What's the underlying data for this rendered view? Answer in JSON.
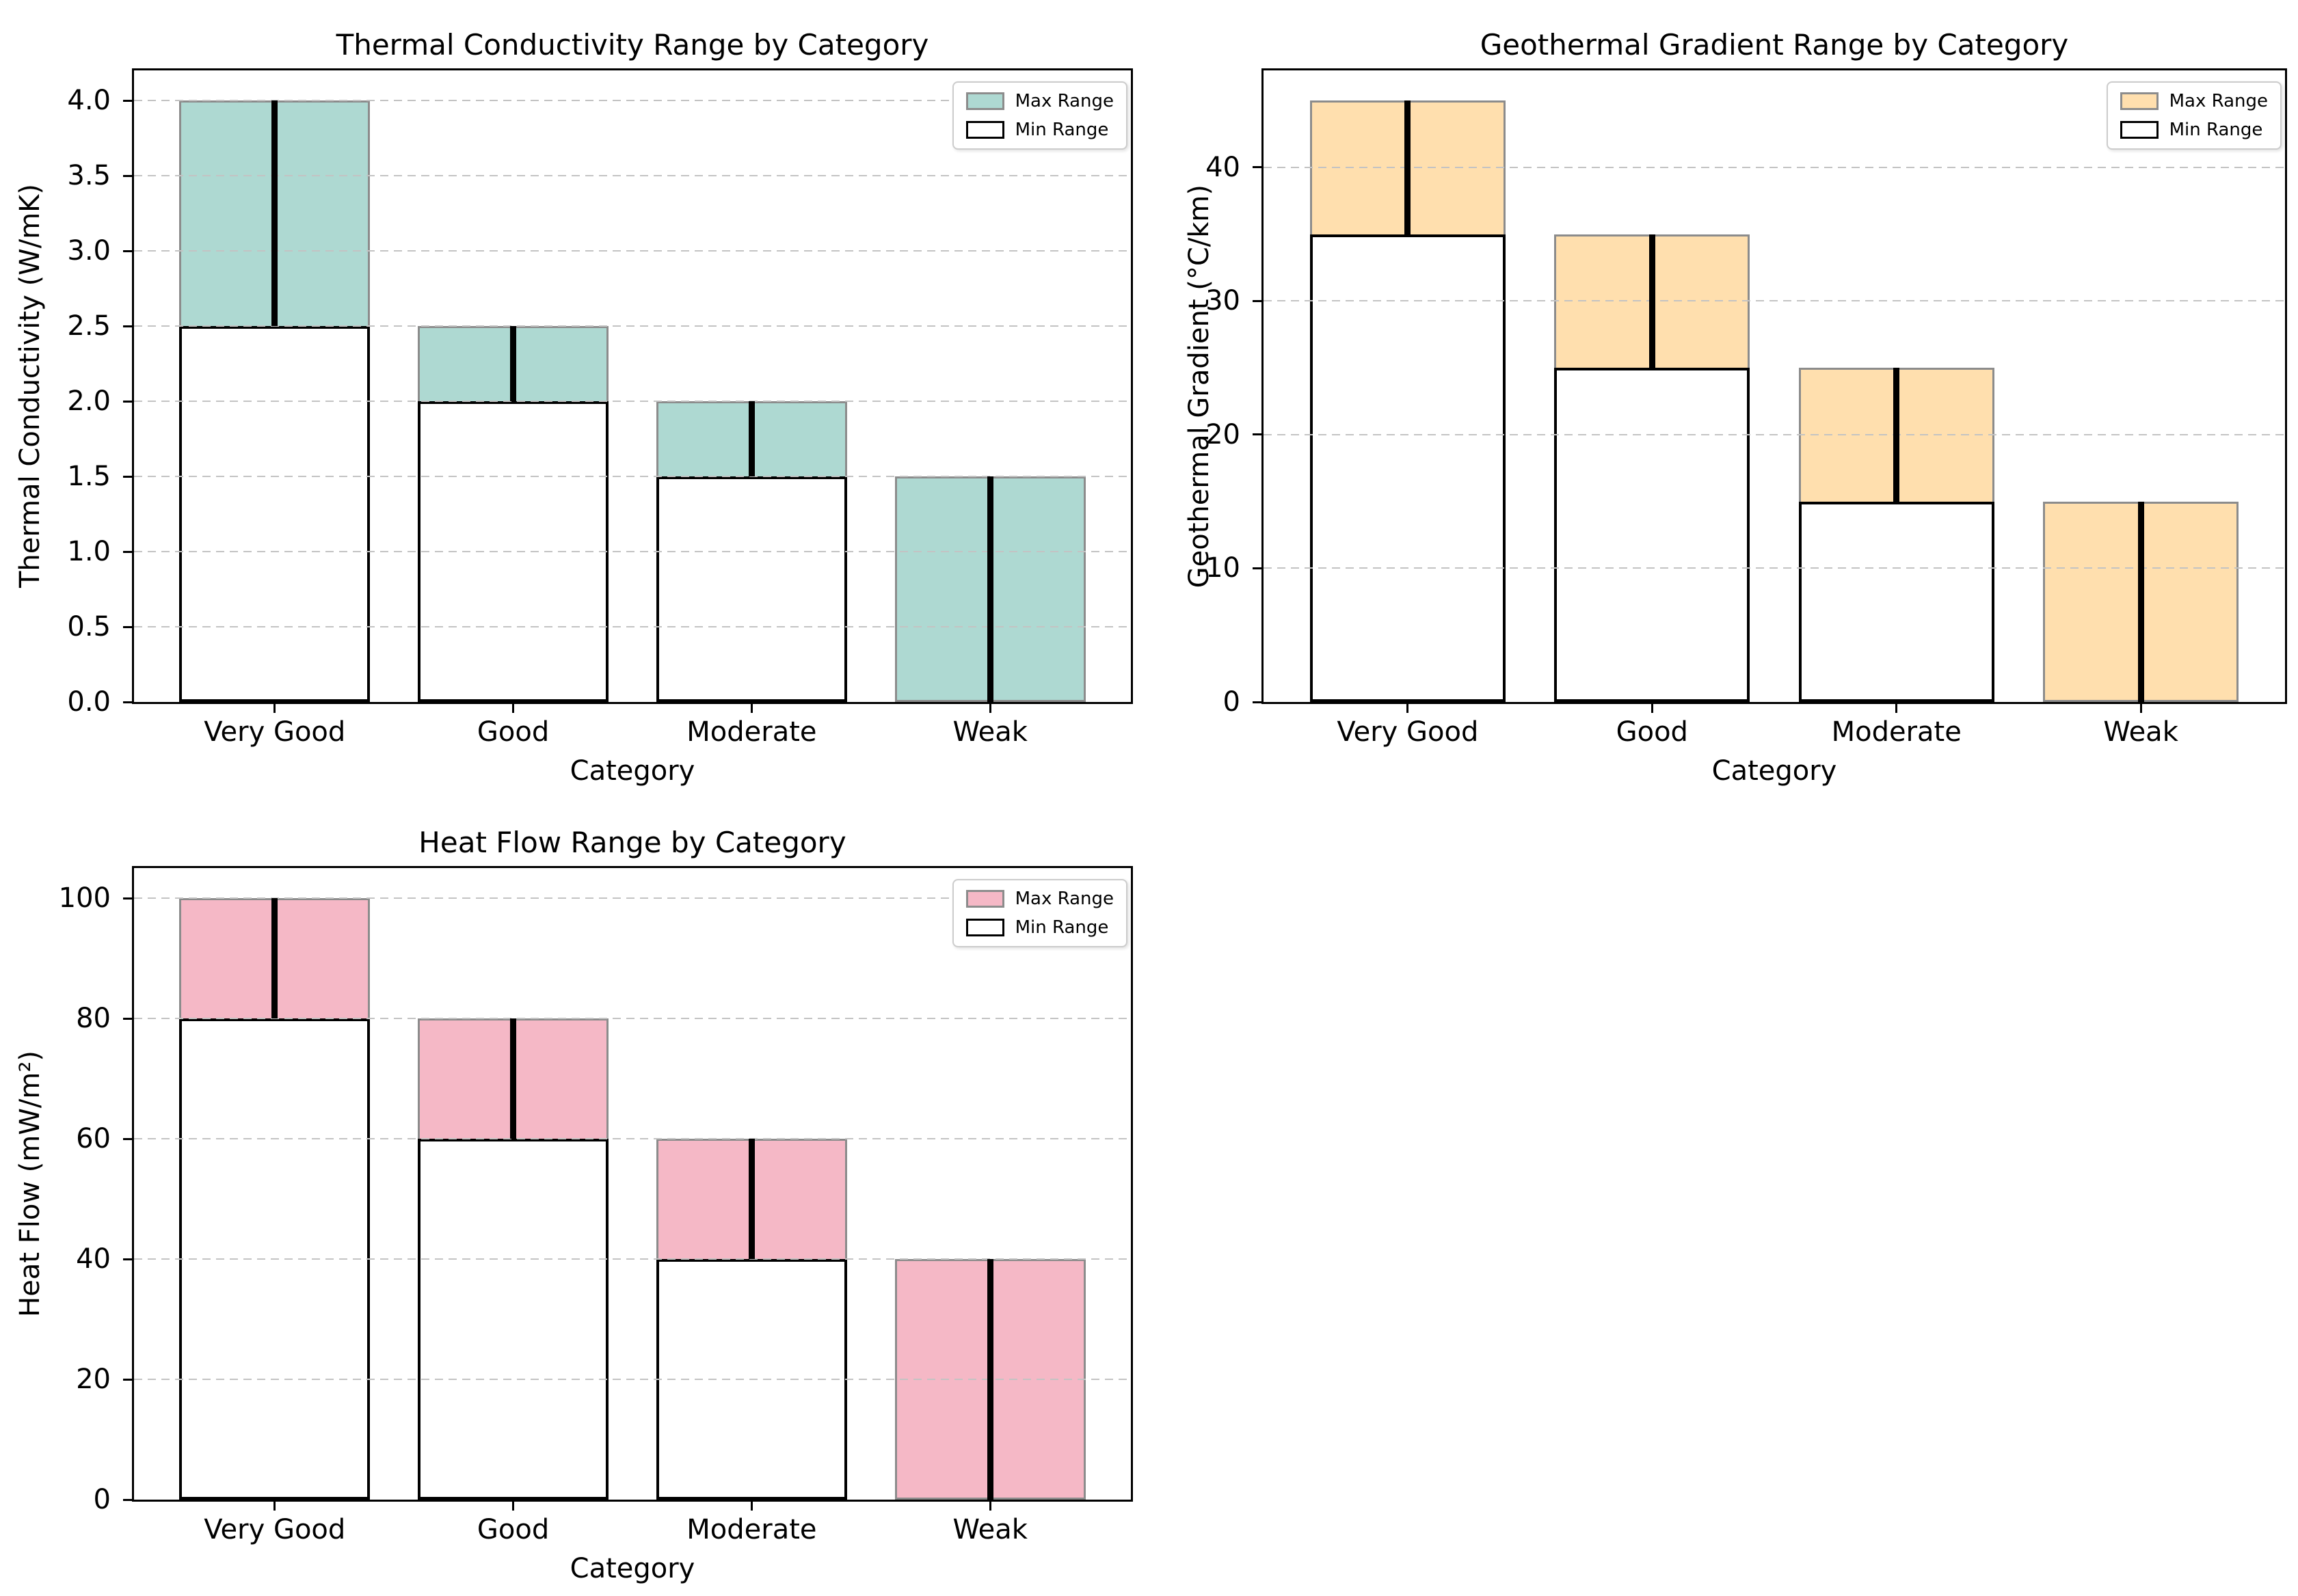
{
  "figure": {
    "background": "#ffffff",
    "grid_color": "#c3c3c3",
    "spine_color": "#000000",
    "error_bar_color": "#000000",
    "min_bar_fill": "#ffffff",
    "min_bar_edge": "#000000"
  },
  "chart_data": [
    {
      "type": "bar",
      "title": "Thermal Conductivity Range by Category",
      "xlabel": "Category",
      "ylabel": "Thermal Conductivity (W/mK)",
      "categories": [
        "Very Good",
        "Good",
        "Moderate",
        "Weak"
      ],
      "series": [
        {
          "name": "Max Range",
          "values": [
            4.0,
            2.5,
            2.0,
            1.5
          ]
        },
        {
          "name": "Min Range",
          "values": [
            2.5,
            2.0,
            1.5,
            0.0
          ]
        }
      ],
      "bar_width": 0.8,
      "ylim": [
        0,
        4.2
      ],
      "ytick_values": [
        0,
        0.5,
        1.0,
        1.5,
        2.0,
        2.5,
        3.0,
        3.5,
        4.0
      ],
      "ytick_labels": [
        "0.0",
        "0.5",
        "1.0",
        "1.5",
        "2.0",
        "2.5",
        "3.0",
        "3.5",
        "4.0"
      ],
      "max_fill": "#aed9d2",
      "max_edge": "#8c8c8c",
      "grid": true,
      "legend_position": "upper right"
    },
    {
      "type": "bar",
      "title": "Geothermal Gradient Range by Category",
      "xlabel": "Category",
      "ylabel": "Geothermal Gradient (°C/km)",
      "categories": [
        "Very Good",
        "Good",
        "Moderate",
        "Weak"
      ],
      "series": [
        {
          "name": "Max Range",
          "values": [
            45,
            35,
            25,
            15
          ]
        },
        {
          "name": "Min Range",
          "values": [
            35,
            25,
            15,
            0
          ]
        }
      ],
      "bar_width": 0.8,
      "ylim": [
        0,
        47.25
      ],
      "ytick_values": [
        0,
        10,
        20,
        30,
        40
      ],
      "ytick_labels": [
        "0",
        "10",
        "20",
        "30",
        "40"
      ],
      "max_fill": "#ffdfae",
      "max_edge": "#8c8c8c",
      "grid": true,
      "legend_position": "upper right"
    },
    {
      "type": "bar",
      "title": "Heat Flow Range by Category",
      "xlabel": "Category",
      "ylabel": "Heat Flow (mW/m²)",
      "categories": [
        "Very Good",
        "Good",
        "Moderate",
        "Weak"
      ],
      "series": [
        {
          "name": "Max Range",
          "values": [
            100,
            80,
            60,
            40
          ]
        },
        {
          "name": "Min Range",
          "values": [
            80,
            60,
            40,
            0
          ]
        }
      ],
      "bar_width": 0.8,
      "ylim": [
        0,
        105
      ],
      "ytick_values": [
        0,
        20,
        40,
        60,
        80,
        100
      ],
      "ytick_labels": [
        "0",
        "20",
        "40",
        "60",
        "80",
        "100"
      ],
      "max_fill": "#f5b8c6",
      "max_edge": "#8c8c8c",
      "grid": true,
      "legend_position": "upper right"
    }
  ]
}
